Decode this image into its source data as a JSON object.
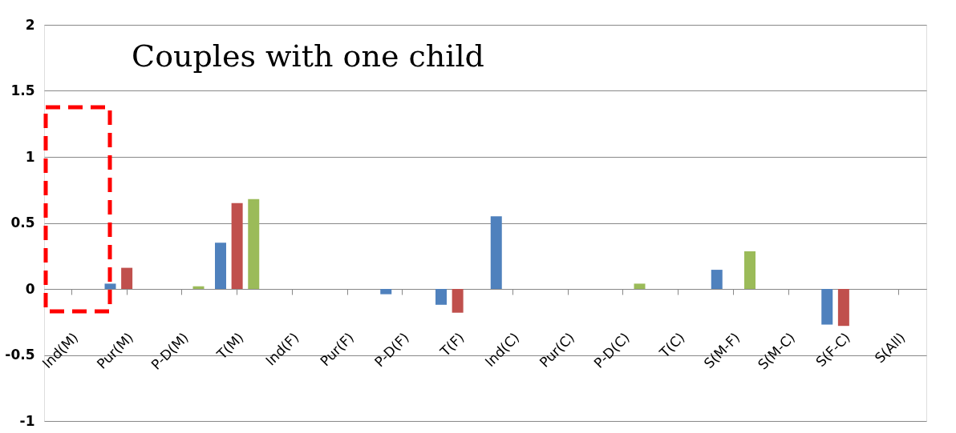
{
  "chart_data": {
    "type": "bar",
    "title": "Couples with one child",
    "categories": [
      "Ind(M)",
      "Pur(M)",
      "P-D(M)",
      "T(M)",
      "Ind(F)",
      "Pur(F)",
      "P-D(F)",
      "T(F)",
      "Ind(C)",
      "Pur(C)",
      "P-D(C)",
      "T(C)",
      "S(M-F)",
      "S(M-C)",
      "S(F-C)",
      "S(All)"
    ],
    "series": [
      {
        "color": "#4f81bd",
        "values": [
          0,
          0.04,
          0,
          0.35,
          0,
          0,
          -0.04,
          -0.12,
          0.55,
          0,
          0,
          0,
          0.145,
          0,
          -0.27,
          0
        ]
      },
      {
        "color": "#c0504d",
        "values": [
          0,
          0.16,
          0,
          0.65,
          0,
          0,
          0,
          -0.18,
          0,
          0,
          0,
          0,
          0,
          0,
          -0.28,
          0
        ]
      },
      {
        "color": "#9bbb59",
        "values": [
          0,
          0,
          0.02,
          0.68,
          0,
          0,
          0,
          0,
          0,
          0,
          0.04,
          0,
          0.285,
          0,
          0,
          0
        ]
      }
    ],
    "ylim": [
      -1,
      2
    ],
    "yticks": [
      -1,
      -0.5,
      0,
      0.5,
      1,
      1.5,
      2
    ],
    "grid": "y"
  }
}
